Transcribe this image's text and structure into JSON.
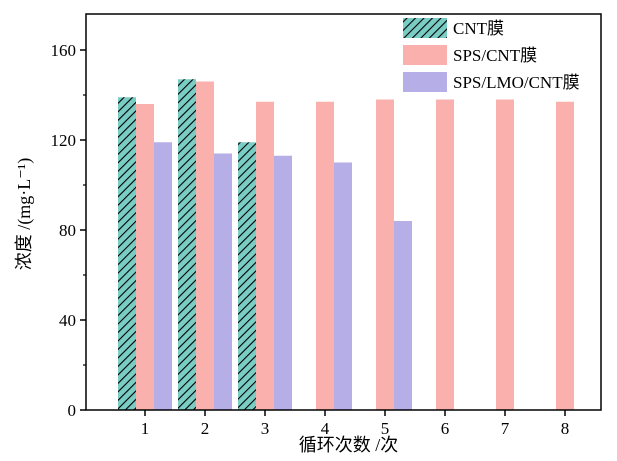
{
  "chart_data": {
    "type": "bar",
    "title": "",
    "xlabel": "循环次数 /次",
    "ylabel": "浓度 /(mg·L⁻¹)",
    "categories": [
      "1",
      "2",
      "3",
      "4",
      "5",
      "6",
      "7",
      "8"
    ],
    "ylim": [
      0,
      176
    ],
    "yticks": [
      "0",
      "40",
      "80",
      "120",
      "160"
    ],
    "grid": false,
    "legend_position": "top-right",
    "series": [
      {
        "name": "CNT膜",
        "color": "#79CDC4",
        "pattern": "diagonal-hatch",
        "values": [
          139,
          147,
          119,
          null,
          null,
          null,
          null,
          null
        ]
      },
      {
        "name": "SPS/CNT膜",
        "color": "#FAB0AC",
        "pattern": "solid",
        "values": [
          136,
          146,
          137,
          137,
          138,
          138,
          138,
          137
        ]
      },
      {
        "name": "SPS/LMO/CNT膜",
        "color": "#B6AEE6",
        "pattern": "solid",
        "values": [
          119,
          114,
          113,
          110,
          84,
          null,
          null,
          null
        ]
      }
    ]
  }
}
